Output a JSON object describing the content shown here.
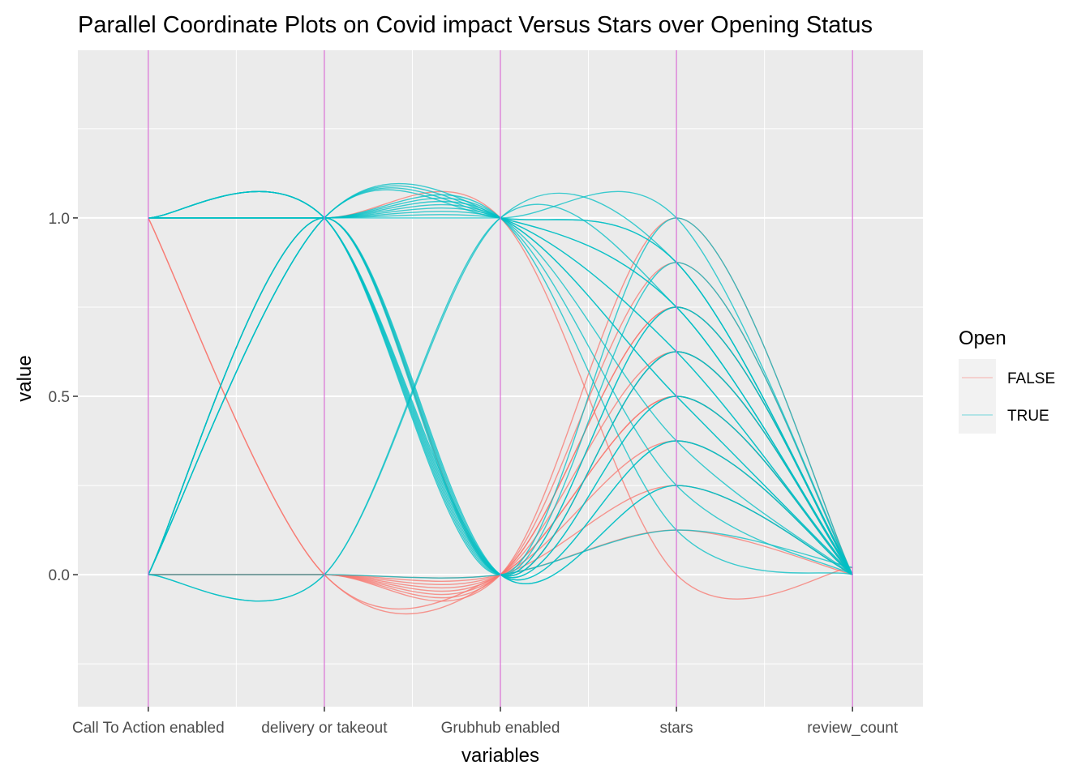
{
  "chart_data": {
    "type": "line",
    "title": "Parallel Coordinate Plots on Covid impact Versus Stars over Opening Status",
    "xlabel": "variables",
    "ylabel": "value",
    "categories": [
      "Call To Action enabled",
      "delivery or takeout",
      "Grubhub enabled",
      "stars",
      "review_count"
    ],
    "ylim": [
      -0.37,
      1.47
    ],
    "yticks": [
      0.0,
      0.5,
      1.0
    ],
    "ytick_labels": [
      "0.0",
      "0.5",
      "1.0"
    ],
    "grid": true,
    "curve": "spline",
    "legend": {
      "title": "Open",
      "position": "right",
      "entries": [
        {
          "label": "FALSE",
          "color": "#F8766D"
        },
        {
          "label": "TRUE",
          "color": "#00BFC4"
        }
      ]
    },
    "colors": {
      "FALSE": "#F8766D",
      "TRUE": "#00BFC4",
      "axis_line": "#DA70D6",
      "panel": "#EBEBEB",
      "grid": "#FFFFFF"
    },
    "series": [
      {
        "group": "FALSE",
        "values": [
          0,
          0,
          0,
          1.0,
          0
        ]
      },
      {
        "group": "FALSE",
        "values": [
          0,
          0,
          0,
          0.875,
          0
        ]
      },
      {
        "group": "FALSE",
        "values": [
          0,
          0,
          0,
          0.75,
          0
        ]
      },
      {
        "group": "FALSE",
        "values": [
          0,
          0,
          0,
          0.625,
          0
        ]
      },
      {
        "group": "FALSE",
        "values": [
          0,
          0,
          0,
          0.5,
          0
        ]
      },
      {
        "group": "FALSE",
        "values": [
          0,
          0,
          0,
          0.375,
          0
        ]
      },
      {
        "group": "FALSE",
        "values": [
          0,
          0,
          0,
          0.25,
          0
        ]
      },
      {
        "group": "FALSE",
        "values": [
          0,
          0,
          0,
          0.125,
          0
        ]
      },
      {
        "group": "FALSE",
        "values": [
          1,
          0,
          0,
          0.75,
          0
        ]
      },
      {
        "group": "FALSE",
        "values": [
          1,
          0,
          0,
          0.5,
          0
        ]
      },
      {
        "group": "FALSE",
        "values": [
          0,
          1,
          0,
          0.625,
          0
        ]
      },
      {
        "group": "FALSE",
        "values": [
          1,
          1,
          1,
          0,
          0.02
        ]
      },
      {
        "group": "TRUE",
        "values": [
          1,
          1,
          1,
          0.875,
          0
        ]
      },
      {
        "group": "TRUE",
        "values": [
          1,
          1,
          1,
          0.75,
          0
        ]
      },
      {
        "group": "TRUE",
        "values": [
          1,
          1,
          1,
          0.625,
          0
        ]
      },
      {
        "group": "TRUE",
        "values": [
          1,
          1,
          1,
          0.5,
          0
        ]
      },
      {
        "group": "TRUE",
        "values": [
          1,
          1,
          1,
          0.375,
          0
        ]
      },
      {
        "group": "TRUE",
        "values": [
          1,
          1,
          1,
          0.25,
          0
        ]
      },
      {
        "group": "TRUE",
        "values": [
          1,
          1,
          1,
          0.125,
          0
        ]
      },
      {
        "group": "TRUE",
        "values": [
          1,
          1,
          1,
          1.0,
          0
        ]
      },
      {
        "group": "TRUE",
        "values": [
          1,
          1,
          0,
          1.0,
          0
        ]
      },
      {
        "group": "TRUE",
        "values": [
          1,
          1,
          0,
          0.875,
          0
        ]
      },
      {
        "group": "TRUE",
        "values": [
          1,
          1,
          0,
          0.75,
          0
        ]
      },
      {
        "group": "TRUE",
        "values": [
          1,
          1,
          0,
          0.625,
          0
        ]
      },
      {
        "group": "TRUE",
        "values": [
          1,
          1,
          0,
          0.5,
          0
        ]
      },
      {
        "group": "TRUE",
        "values": [
          1,
          1,
          0,
          0.375,
          0
        ]
      },
      {
        "group": "TRUE",
        "values": [
          1,
          1,
          0,
          0.25,
          0
        ]
      },
      {
        "group": "TRUE",
        "values": [
          0,
          1,
          1,
          0.875,
          0
        ]
      },
      {
        "group": "TRUE",
        "values": [
          0,
          1,
          1,
          0.75,
          0
        ]
      },
      {
        "group": "TRUE",
        "values": [
          0,
          1,
          1,
          0.625,
          0
        ]
      },
      {
        "group": "TRUE",
        "values": [
          0,
          1,
          1,
          0.5,
          0
        ]
      },
      {
        "group": "TRUE",
        "values": [
          0,
          1,
          0,
          0.75,
          0
        ]
      },
      {
        "group": "TRUE",
        "values": [
          0,
          1,
          0,
          0.625,
          0
        ]
      },
      {
        "group": "TRUE",
        "values": [
          0,
          1,
          0,
          0.5,
          0
        ]
      },
      {
        "group": "TRUE",
        "values": [
          0,
          1,
          0,
          0.375,
          0
        ]
      },
      {
        "group": "TRUE",
        "values": [
          0,
          1,
          0,
          0.25,
          0
        ]
      },
      {
        "group": "TRUE",
        "values": [
          0,
          0,
          1,
          0.875,
          0
        ]
      },
      {
        "group": "TRUE",
        "values": [
          0,
          0,
          1,
          0.75,
          0
        ]
      },
      {
        "group": "TRUE",
        "values": [
          0,
          0,
          0,
          0.125,
          0.02
        ]
      }
    ]
  }
}
